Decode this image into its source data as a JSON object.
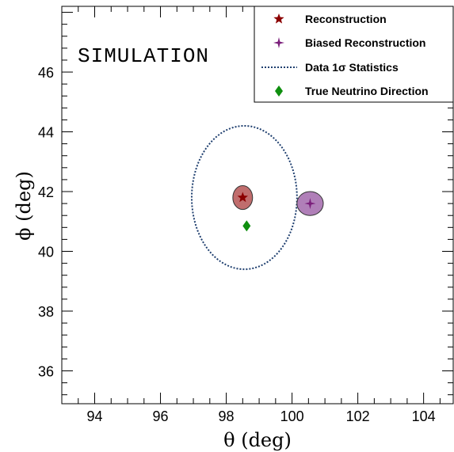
{
  "chart_data": {
    "type": "scatter",
    "xlabel": "θ (deg)",
    "ylabel": "ϕ (deg)",
    "xlim": [
      93.0,
      104.9
    ],
    "ylim": [
      34.9,
      48.2
    ],
    "xticks": [
      94,
      96,
      98,
      100,
      102,
      104
    ],
    "yticks": [
      36,
      38,
      40,
      42,
      44,
      46
    ],
    "annotation": "SIMULATION",
    "grid": false,
    "legend_position": "top-right",
    "legend": [
      {
        "label": "Reconstruction",
        "marker": "star",
        "color": "#8b0000"
      },
      {
        "label": "Biased Reconstruction",
        "marker": "cross-star",
        "color": "#7b1f7b"
      },
      {
        "label": "Data 1σ Statistics",
        "marker": "dotted-line",
        "color": "#1f3f6f"
      },
      {
        "label": "True Neutrino Direction",
        "marker": "diamond",
        "color": "#0f8f0f"
      }
    ],
    "points": [
      {
        "name": "Reconstruction",
        "x": 98.5,
        "y": 41.8,
        "sx": 0.3,
        "sy": 0.4,
        "color": "#8b0000",
        "fill": "#c06d6d"
      },
      {
        "name": "Biased Reconstruction",
        "x": 100.55,
        "y": 41.6,
        "sx": 0.4,
        "sy": 0.4,
        "color": "#7b1f7b",
        "fill": "#b07fb8"
      },
      {
        "name": "True Neutrino Direction",
        "x": 98.62,
        "y": 40.85,
        "color": "#0f8f0f"
      }
    ],
    "ellipse": {
      "name": "Data 1σ Statistics",
      "cx": 98.55,
      "cy": 41.8,
      "rx": 1.6,
      "ry": 2.4,
      "color": "#1f3f6f"
    }
  }
}
